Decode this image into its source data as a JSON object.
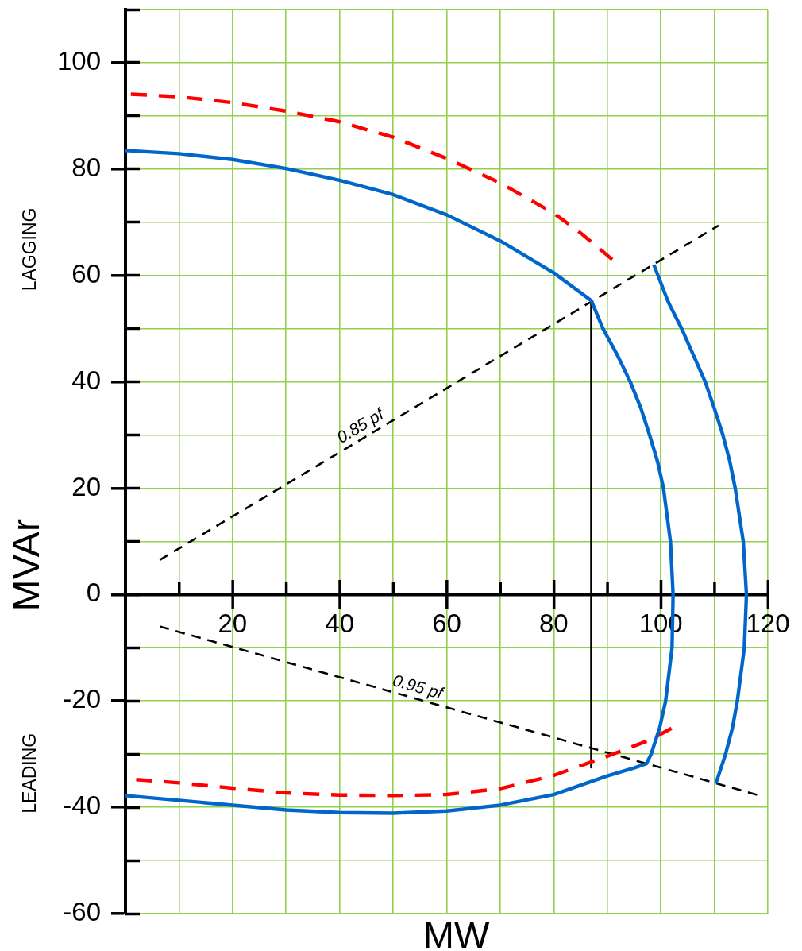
{
  "chart_data": {
    "type": "line",
    "xlabel": "MW",
    "ylabel": "MVAr",
    "xlim": [
      0,
      120
    ],
    "ylim": [
      -60,
      110
    ],
    "xticks": [
      {
        "value": 10,
        "label": null
      },
      20,
      {
        "value": 30,
        "label": null
      },
      40,
      {
        "value": 50,
        "label": null
      },
      60,
      {
        "value": 70,
        "label": null
      },
      80,
      {
        "value": 90,
        "label": null
      },
      100,
      {
        "value": 110,
        "label": null
      },
      120
    ],
    "yticks": [
      -60,
      {
        "value": -50,
        "label": null
      },
      -40,
      {
        "value": -30,
        "label": null
      },
      -20,
      {
        "value": -10,
        "label": null
      },
      0,
      {
        "value": 10,
        "label": null
      },
      20,
      {
        "value": 30,
        "label": null
      },
      40,
      {
        "value": 50,
        "label": null
      },
      60,
      {
        "value": 70,
        "label": null
      },
      80,
      {
        "value": 90,
        "label": null
      },
      100,
      {
        "value": 110,
        "label": null
      }
    ],
    "grid": true,
    "marker": "none",
    "line_style": "solid",
    "series": [
      {
        "color": "#0066cc",
        "x": [
          0,
          10,
          20,
          30,
          40,
          50,
          60,
          70,
          80,
          87,
          89.2,
          91.9,
          94.3,
          96.3,
          97.9,
          99.4,
          100.5,
          101.8,
          102.3,
          102.1,
          100.9,
          99.8,
          98.2,
          97.3,
          95,
          90,
          80,
          70,
          60,
          50,
          40,
          30,
          20,
          10,
          0
        ],
        "values": [
          83.5,
          82.9,
          81.8,
          80.1,
          77.9,
          75.2,
          71.4,
          66.5,
          60.5,
          55.3,
          50,
          45,
          40,
          35,
          30,
          25,
          20,
          10,
          0,
          -10,
          -20,
          -25,
          -30,
          -31.8,
          -32.6,
          -34.1,
          -37.6,
          -39.6,
          -40.7,
          -41.1,
          -41,
          -40.5,
          -39.6,
          -38.7,
          -37.8
        ]
      },
      {
        "color": "#0066cc",
        "x": [
          98.7,
          101.4,
          103.9,
          106.1,
          108.3,
          110,
          111.6,
          112.9,
          113.9,
          115.4,
          116,
          115.6,
          114.3,
          113.4,
          112.1,
          110.3
        ],
        "values": [
          62,
          55,
          50,
          45,
          40,
          35,
          30,
          25,
          20,
          10,
          0,
          -10,
          -20,
          -25,
          -30,
          -35.5
        ]
      },
      {
        "color": "#ff0000",
        "line_style": "dashed",
        "x": [
          1,
          10,
          20,
          30,
          40,
          50,
          60,
          70,
          80,
          85,
          91.3
        ],
        "values": [
          94.1,
          93.6,
          92.5,
          90.9,
          88.9,
          86,
          82,
          77.4,
          71.7,
          68,
          62.7
        ]
      },
      {
        "color": "#ff0000",
        "line_style": "dashed",
        "x": [
          2,
          10,
          20,
          30,
          40,
          50,
          60,
          70,
          80,
          90,
          97.8,
          102.3
        ],
        "values": [
          -34.8,
          -35.4,
          -36.4,
          -37.3,
          -37.7,
          -37.8,
          -37.6,
          -36.5,
          -34,
          -30.4,
          -27.4,
          -25
        ]
      },
      {
        "color": "#000000",
        "line_style": "dashed",
        "x": [
          6.4,
          110.8
        ],
        "values": [
          6.5,
          69.4
        ]
      },
      {
        "color": "#000000",
        "line_style": "dashed",
        "x": [
          6.4,
          118.5
        ],
        "values": [
          -6,
          -37.8
        ]
      },
      {
        "color": "#000000",
        "x": [
          87,
          87
        ],
        "values": [
          55.3,
          -32.5
        ]
      }
    ],
    "annotations": [
      "LAGGING",
      "LEADING",
      {
        "text": "0.85 pf",
        "x": 45,
        "y": 29.8
      },
      {
        "text": "0.95 pf",
        "x": 54,
        "y": -19.5
      }
    ]
  }
}
